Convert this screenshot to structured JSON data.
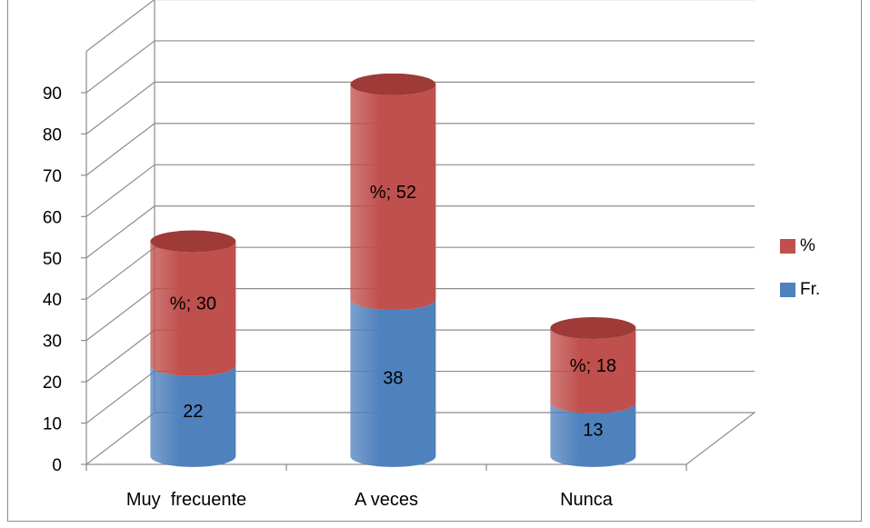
{
  "chart_data": {
    "type": "bar",
    "stacked": true,
    "three_d": true,
    "categories": [
      "Muy  frecuente",
      "A veces",
      "Nunca"
    ],
    "series": [
      {
        "name": "Fr.",
        "values": [
          22,
          38,
          13
        ],
        "color": "#4f81bd"
      },
      {
        "name": "%",
        "values": [
          30,
          52,
          18
        ],
        "color": "#c0504d"
      }
    ],
    "data_labels": [
      [
        "22",
        "38",
        "13"
      ],
      [
        "%; 30",
        "%; 52",
        "%; 18"
      ]
    ],
    "y_ticks": [
      "0",
      "10",
      "20",
      "30",
      "40",
      "50",
      "60",
      "70",
      "80",
      "90"
    ],
    "ylim": [
      0,
      100
    ],
    "grid": true,
    "legend_position": "right",
    "legend": [
      {
        "name": "%",
        "color": "#c0504d"
      },
      {
        "name": "Fr.",
        "color": "#4f81bd"
      }
    ],
    "title": "",
    "xlabel": "",
    "ylabel": ""
  }
}
